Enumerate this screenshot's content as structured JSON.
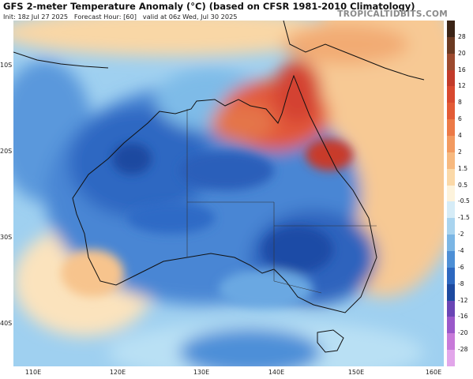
{
  "header": {
    "title": "GFS 2-meter Temperature Anomaly (°C) (based on CFSR 1981-2010 Climatology)",
    "init": "Init: 18z Jul 27 2025",
    "forecast_hour": "Forecast Hour: [60]",
    "valid": "valid at 06z Wed, Jul 30 2025",
    "brand": "TROPICALTIDBITS.COM"
  },
  "map": {
    "region": "Australia",
    "lat_labels": [
      "10S",
      "20S",
      "30S",
      "40S"
    ],
    "lon_labels": [
      "110E",
      "120E",
      "130E",
      "140E",
      "150E",
      "160E"
    ]
  },
  "colorbar": {
    "labels": [
      "28",
      "20",
      "16",
      "12",
      "8",
      "6",
      "4",
      "2",
      "1.5",
      "0.5",
      "-0.5",
      "-1.5",
      "-2",
      "-4",
      "-6",
      "-8",
      "-12",
      "-16",
      "-20",
      "-28"
    ],
    "colors": [
      "#3b2416",
      "#6b3a22",
      "#9c4a2e",
      "#c23b2a",
      "#d8492f",
      "#e35b36",
      "#ec7a47",
      "#f29a60",
      "#f7b97f",
      "#fbd9a8",
      "#fdf3dc",
      "#d6ecf7",
      "#a9d4ef",
      "#7bb6e5",
      "#4d8fd6",
      "#2d68c0",
      "#1d4aa0",
      "#6a45b5",
      "#9a58c9",
      "#c77ad9",
      "#e2a6ea"
    ]
  }
}
